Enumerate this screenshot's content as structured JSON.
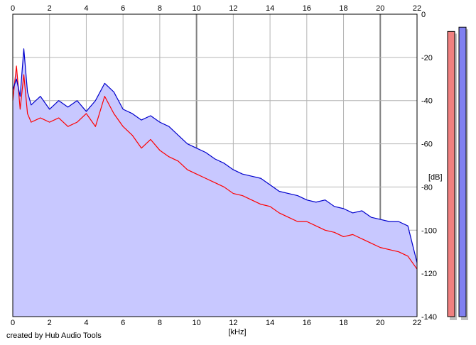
{
  "chart_data": {
    "type": "area",
    "title": "",
    "xlabel": "[kHz]",
    "ylabel": "[dB]",
    "xlim": [
      0,
      22
    ],
    "ylim": [
      -140,
      0
    ],
    "x_ticks": [
      "0",
      "2",
      "4",
      "6",
      "8",
      "10",
      "12",
      "14",
      "16",
      "18",
      "20",
      "22"
    ],
    "y_ticks": [
      "0",
      "-20",
      "-40",
      "-60",
      "-80",
      "-100",
      "-120",
      "-140"
    ],
    "grid": true,
    "fill_color": "#c8c8ff",
    "series": [
      {
        "color": "#0000cc",
        "x": [
          0,
          0.2,
          0.4,
          0.6,
          0.8,
          1,
          1.5,
          2,
          2.5,
          3,
          3.5,
          4,
          4.5,
          5,
          5.5,
          6,
          6.5,
          7,
          7.5,
          8,
          8.5,
          9,
          9.5,
          10,
          10.5,
          11,
          11.5,
          12,
          12.5,
          13,
          13.5,
          14,
          14.5,
          15,
          15.5,
          16,
          16.5,
          17,
          17.5,
          18,
          18.5,
          19,
          19.5,
          20,
          20.5,
          21,
          21.5,
          22
        ],
        "values": [
          -35,
          -30,
          -38,
          -16,
          -36,
          -42,
          -38,
          -44,
          -40,
          -43,
          -40,
          -45,
          -40,
          -32,
          -36,
          -44,
          -46,
          -49,
          -47,
          -50,
          -52,
          -56,
          -60,
          -62,
          -64,
          -67,
          -69,
          -72,
          -74,
          -75,
          -76,
          -79,
          -82,
          -83,
          -84,
          -86,
          -87,
          -86,
          -89,
          -90,
          -92,
          -91,
          -94,
          -95,
          -96,
          -96,
          -98,
          -115
        ]
      },
      {
        "color": "#ff0000",
        "x": [
          0,
          0.2,
          0.4,
          0.6,
          0.8,
          1,
          1.5,
          2,
          2.5,
          3,
          3.5,
          4,
          4.5,
          5,
          5.5,
          6,
          6.5,
          7,
          7.5,
          8,
          8.5,
          9,
          9.5,
          10,
          10.5,
          11,
          11.5,
          12,
          12.5,
          13,
          13.5,
          14,
          14.5,
          15,
          15.5,
          16,
          16.5,
          17,
          17.5,
          18,
          18.5,
          19,
          19.5,
          20,
          20.5,
          21,
          21.5,
          22
        ],
        "values": [
          -40,
          -24,
          -44,
          -28,
          -46,
          -50,
          -48,
          -50,
          -48,
          -52,
          -50,
          -46,
          -52,
          -38,
          -46,
          -52,
          -56,
          -62,
          -58,
          -63,
          -66,
          -68,
          -72,
          -74,
          -76,
          -78,
          -80,
          -83,
          -84,
          -86,
          -88,
          -89,
          -92,
          -94,
          -96,
          -96,
          -98,
          -100,
          -101,
          -103,
          -102,
          -104,
          -106,
          -108,
          -109,
          -110,
          -112,
          -118
        ]
      }
    ]
  },
  "meters": [
    {
      "color": "#f08080",
      "level_db": -8
    },
    {
      "color": "#8080f0",
      "level_db": -6
    }
  ],
  "credit": "created by Hub Audio Tools"
}
